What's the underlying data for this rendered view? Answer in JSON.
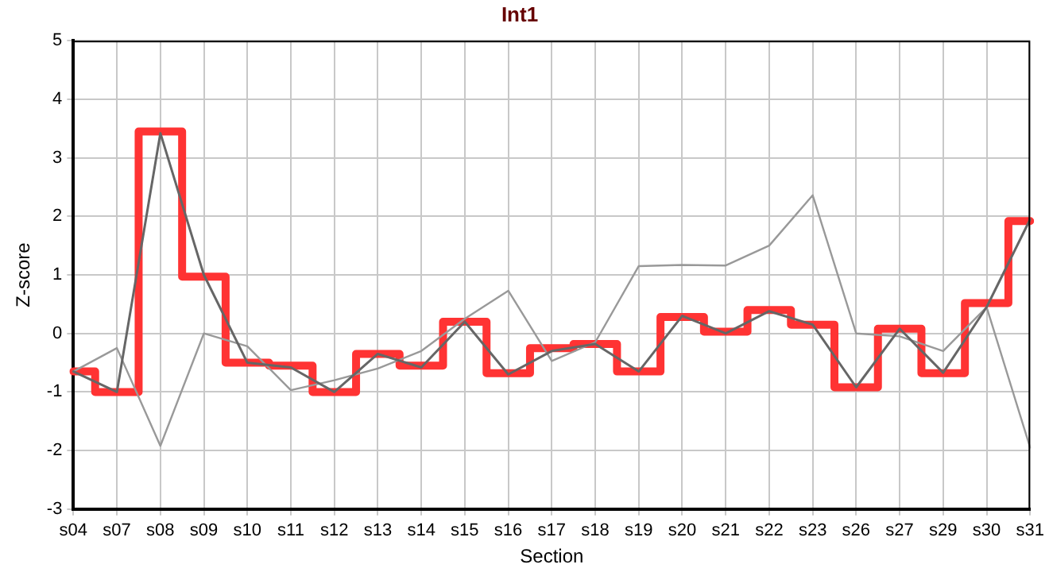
{
  "chart_data": {
    "type": "line",
    "title": "Int1",
    "xlabel": "Section",
    "ylabel": "Z-score",
    "categories": [
      "s04",
      "s07",
      "s08",
      "s09",
      "s10",
      "s11",
      "s12",
      "s13",
      "s14",
      "s15",
      "s16",
      "s17",
      "s18",
      "s19",
      "s20",
      "s21",
      "s22",
      "s23",
      "s26",
      "s27",
      "s29",
      "s30",
      "s31"
    ],
    "series": [
      {
        "type": "step",
        "color": "#ff3333",
        "values": [
          -0.65,
          -1.0,
          3.45,
          0.97,
          -0.5,
          -0.55,
          -1.0,
          -0.35,
          -0.55,
          0.2,
          -0.68,
          -0.25,
          -0.18,
          -0.65,
          0.28,
          0.03,
          0.4,
          0.15,
          -0.92,
          0.08,
          -0.68,
          0.52,
          1.92
        ]
      },
      {
        "type": "line",
        "color": "#666666",
        "values": [
          -0.65,
          -1.0,
          3.42,
          1.0,
          -0.5,
          -0.58,
          -1.0,
          -0.35,
          -0.58,
          0.2,
          -0.7,
          -0.3,
          -0.18,
          -0.65,
          0.3,
          0.0,
          0.38,
          0.15,
          -0.92,
          0.08,
          -0.67,
          0.45,
          1.95
        ]
      },
      {
        "type": "line",
        "color": "#999999",
        "values": [
          -0.65,
          -0.25,
          -1.92,
          0.0,
          -0.22,
          -0.97,
          -0.8,
          -0.6,
          -0.3,
          0.25,
          0.73,
          -0.47,
          -0.15,
          1.15,
          1.17,
          1.16,
          1.5,
          2.36,
          0.0,
          -0.05,
          -0.3,
          0.45,
          -1.95
        ]
      }
    ],
    "ylim": [
      -3,
      5
    ],
    "yticks": [
      -3,
      -2,
      -1,
      0,
      1,
      2,
      3,
      4,
      5
    ],
    "grid": true,
    "legend": false,
    "marker": "none",
    "line_style": "solid"
  }
}
